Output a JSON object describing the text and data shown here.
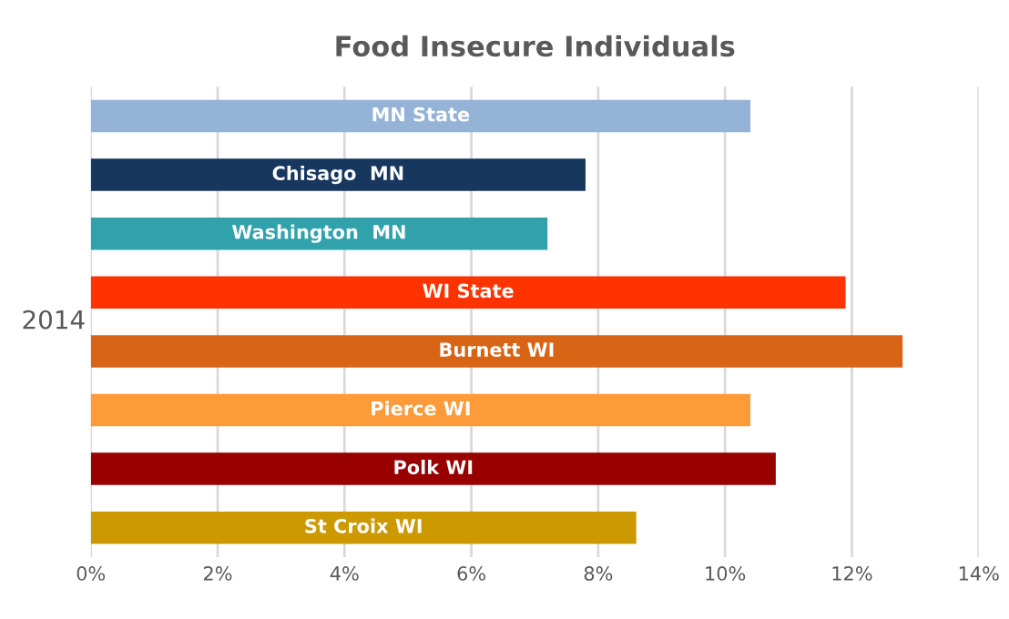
{
  "chart_data": {
    "type": "bar",
    "title": "Food Insecure Individuals",
    "ylabel": "2014",
    "orientation": "horizontal",
    "categories": [
      "MN State",
      "Chisago  MN",
      "Washington  MN",
      "WI State",
      "Burnett WI",
      "Pierce WI",
      "Polk WI",
      "St Croix WI"
    ],
    "values": [
      10.4,
      7.8,
      7.2,
      11.9,
      12.8,
      10.4,
      10.8,
      8.6
    ],
    "colors": [
      "#95b3d7",
      "#17375e",
      "#31a2ac",
      "#ff3300",
      "#d86416",
      "#fd9b3a",
      "#990000",
      "#cc9900"
    ],
    "xlim": [
      0,
      14
    ],
    "xticks": [
      {
        "value": 0,
        "label": "0%"
      },
      {
        "value": 2,
        "label": "2%"
      },
      {
        "value": 4,
        "label": "4%"
      },
      {
        "value": 6,
        "label": "6%"
      },
      {
        "value": 8,
        "label": "8%"
      },
      {
        "value": 10,
        "label": "10%"
      },
      {
        "value": 12,
        "label": "12%"
      },
      {
        "value": 14,
        "label": "14%"
      }
    ],
    "grid": "x"
  }
}
